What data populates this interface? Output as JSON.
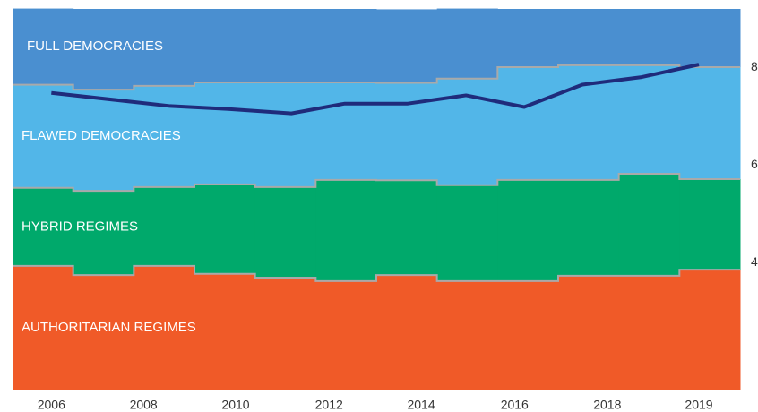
{
  "chart_data": {
    "type": "step_area",
    "xlim": [
      0,
      12
    ],
    "xticks": [
      {
        "value": 0.64,
        "label": "2006"
      },
      {
        "value": 2.16,
        "label": "2008"
      },
      {
        "value": 3.68,
        "label": "2010"
      },
      {
        "value": 5.22,
        "label": "2012"
      },
      {
        "value": 6.74,
        "label": "2014"
      },
      {
        "value": 8.28,
        "label": "2016"
      },
      {
        "value": 9.81,
        "label": "2018"
      },
      {
        "value": 11.32,
        "label": "2019"
      }
    ],
    "ylim": [
      0,
      100
    ],
    "y2lim": [
      1.4,
      9.2
    ],
    "y2ticks": [
      4,
      6,
      8
    ],
    "series": [
      {
        "name": "AUTHORITARIAN REGIMES",
        "color": "#f05a28",
        "values": [
          32.5,
          30.1,
          32.5,
          30.4,
          29.4,
          28.5,
          30.1,
          28.5,
          28.5,
          29.9,
          29.9,
          31.5
        ]
      },
      {
        "name": "HYBRID REGIMES",
        "color": "#00a96b",
        "values": [
          20.5,
          22.1,
          20.7,
          23.5,
          23.8,
          26.6,
          24.9,
          25.2,
          26.6,
          25.2,
          26.8,
          23.8
        ]
      },
      {
        "name": "FLAWED DEMOCRACIES",
        "color": "#52b6e8",
        "values": [
          27.1,
          26.6,
          26.6,
          26.8,
          27.5,
          25.6,
          25.6,
          28.0,
          29.6,
          30.1,
          28.5,
          29.4
        ]
      },
      {
        "name": "FULL DEMOCRACIES",
        "color": "#4a8fd0",
        "values": [
          20.0,
          21.2,
          20.2,
          19.3,
          19.3,
          19.3,
          19.3,
          18.4,
          15.3,
          14.8,
          14.8,
          15.3
        ]
      }
    ],
    "line": {
      "color": "#1f2b7b",
      "axis": "y2",
      "x": [
        0.64,
        2.6,
        3.56,
        4.6,
        5.48,
        6.52,
        7.48,
        8.44,
        9.4,
        10.36,
        11.32
      ],
      "values": [
        7.48,
        7.21,
        7.15,
        7.06,
        7.26,
        7.26,
        7.43,
        7.19,
        7.65,
        7.8,
        8.06
      ]
    }
  }
}
